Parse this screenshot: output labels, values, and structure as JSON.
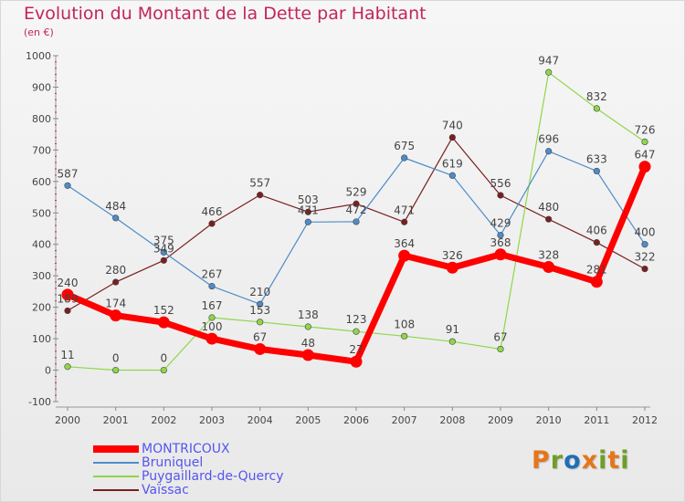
{
  "header": {
    "title": "Evolution du Montant de la Dette par Habitant",
    "subtitle": "(en €)"
  },
  "logo": {
    "text": "Proxiti",
    "colors": [
      "#e4761b",
      "#6f9e28",
      "#1f6fb5",
      "#e4761b",
      "#6f9e28",
      "#e4761b",
      "#6f9e28"
    ]
  },
  "chart_data": {
    "type": "line",
    "title": "Evolution du Montant de la Dette par Habitant",
    "subtitle": "(en €)",
    "xlabel": "",
    "ylabel": "",
    "x": [
      "2000",
      "2001",
      "2002",
      "2003",
      "2004",
      "2005",
      "2006",
      "2007",
      "2008",
      "2009",
      "2010",
      "2011",
      "2012"
    ],
    "ylim": [
      -100,
      1000
    ],
    "yticks": [
      -100,
      0,
      100,
      200,
      300,
      400,
      500,
      600,
      700,
      800,
      900,
      1000
    ],
    "grid": false,
    "legend_position": "bottom-left",
    "series": [
      {
        "name": "MONTRICOUX",
        "color": "#ff0000",
        "values": [
          240,
          174,
          152,
          100,
          67,
          48,
          27,
          364,
          326,
          368,
          328,
          281,
          647
        ]
      },
      {
        "name": "Bruniquel",
        "color": "#4d8cc8",
        "values": [
          587,
          484,
          375,
          267,
          210,
          471,
          472,
          675,
          619,
          429,
          696,
          633,
          400
        ]
      },
      {
        "name": "Puygaillard-de-Quercy",
        "color": "#8fd64a",
        "values": [
          11,
          0,
          0,
          167,
          153,
          138,
          123,
          108,
          91,
          67,
          947,
          832,
          726
        ]
      },
      {
        "name": "Vaïssac",
        "color": "#7a1f1f",
        "values": [
          189,
          280,
          349,
          466,
          557,
          503,
          529,
          471,
          740,
          556,
          480,
          406,
          322
        ]
      }
    ]
  }
}
